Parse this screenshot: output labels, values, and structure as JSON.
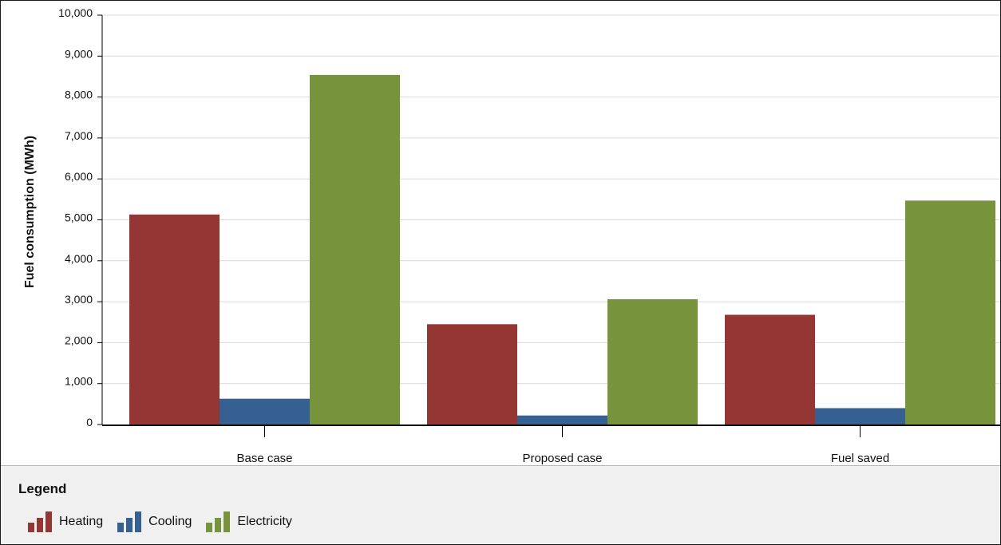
{
  "colors": {
    "heating": "#943634",
    "cooling": "#376092",
    "electricity": "#77933c",
    "gridline": "#d9d9d9",
    "axis": "#000000"
  },
  "chart_data": {
    "type": "bar",
    "title": "",
    "xlabel": "",
    "ylabel": "Fuel consumption (MWh)",
    "ylim": [
      0,
      10000
    ],
    "yticks": [
      0,
      1000,
      2000,
      3000,
      4000,
      5000,
      6000,
      7000,
      8000,
      9000,
      10000
    ],
    "ytick_labels": [
      "0",
      "1,000",
      "2,000",
      "3,000",
      "4,000",
      "5,000",
      "6,000",
      "7,000",
      "8,000",
      "9,000",
      "10,000"
    ],
    "grid": true,
    "legend_position": "bottom",
    "categories": [
      "Base case",
      "Proposed case",
      "Fuel saved"
    ],
    "series": [
      {
        "name": "Heating",
        "values": [
          5130,
          2450,
          2680
        ],
        "color": "#943634"
      },
      {
        "name": "Cooling",
        "values": [
          630,
          220,
          400
        ],
        "color": "#376092"
      },
      {
        "name": "Electricity",
        "values": [
          8540,
          3060,
          5470
        ],
        "color": "#77933c"
      }
    ]
  },
  "legend": {
    "title": "Legend",
    "items": [
      {
        "label": "Heating",
        "icon": "bar-chart-icon"
      },
      {
        "label": "Cooling",
        "icon": "bar-chart-icon"
      },
      {
        "label": "Electricity",
        "icon": "bar-chart-icon"
      }
    ]
  }
}
